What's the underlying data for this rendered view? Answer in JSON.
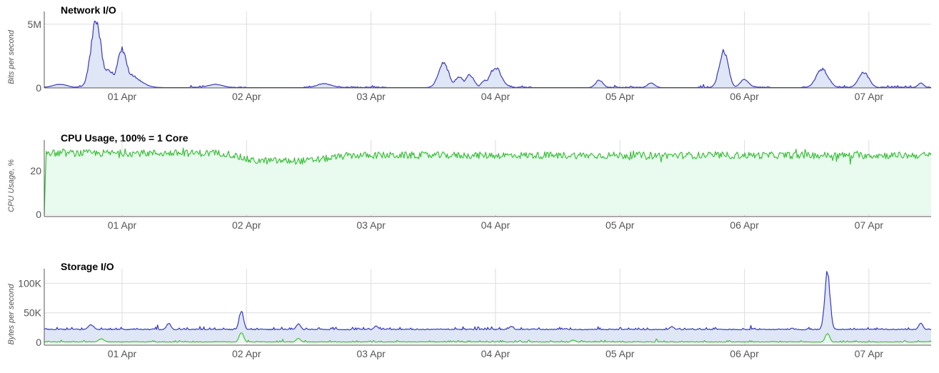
{
  "colors": {
    "blue_line": "#3838c0",
    "blue_fill": "#dfe6f5",
    "green_line": "#3cbf3c",
    "green_fill": "#e8fbee",
    "grid": "#dddddd",
    "text": "#555555"
  },
  "chart_data": [
    {
      "id": "network",
      "type": "area",
      "title": "Network I/O",
      "ylabel": "Bits per second",
      "x_ticks": [
        "01 Apr",
        "02 Apr",
        "03 Apr",
        "04 Apr",
        "05 Apr",
        "06 Apr",
        "07 Apr"
      ],
      "xlim": [
        "2024-03-31T09:00",
        "2024-04-07T12:00"
      ],
      "y_ticks": [
        {
          "v": 0,
          "label": "0"
        },
        {
          "v": 5000000,
          "label": "5M"
        }
      ],
      "ylim": [
        0,
        6000000
      ],
      "grid": true,
      "baseline": 20000,
      "noise": 60000,
      "series": [
        {
          "color_key": "blue",
          "peaks": [
            [
              "2024-03-31T19:00",
              5700000,
              0.7
            ],
            [
              "2024-03-31T21:00",
              1500000,
              1.5
            ],
            [
              "2024-04-01T00:00",
              3300000,
              0.7
            ],
            [
              "2024-04-01T01:00",
              1200000,
              1.5
            ],
            [
              "2024-03-31T12:00",
              300000,
              1
            ],
            [
              "2024-04-01T18:00",
              300000,
              1
            ],
            [
              "2024-04-02T15:00",
              350000,
              1
            ],
            [
              "2024-04-03T14:00",
              2100000,
              0.7
            ],
            [
              "2024-04-03T17:00",
              900000,
              0.7
            ],
            [
              "2024-04-03T19:00",
              1100000,
              0.6
            ],
            [
              "2024-04-03T22:00",
              650000,
              0.5
            ],
            [
              "2024-04-04T00:00",
              1700000,
              0.8
            ],
            [
              "2024-04-04T20:00",
              650000,
              0.5
            ],
            [
              "2024-04-05T06:00",
              400000,
              0.5
            ],
            [
              "2024-04-05T20:00",
              3200000,
              0.6
            ],
            [
              "2024-04-06T00:00",
              700000,
              0.6
            ],
            [
              "2024-04-06T15:00",
              1600000,
              0.8
            ],
            [
              "2024-04-06T23:00",
              1300000,
              0.7
            ],
            [
              "2024-04-07T10:00",
              400000,
              0.4
            ]
          ],
          "gaps": [
            [
              "2024-03-31T11:00",
              "2024-03-31T12:00"
            ],
            [
              "2024-04-01T02:00",
              "2024-04-01T13:00"
            ],
            [
              "2024-04-02T00:00",
              "2024-04-02T11:00"
            ],
            [
              "2024-04-03T03:00",
              "2024-04-03T12:00"
            ],
            [
              "2024-04-04T07:00",
              "2024-04-04T20:00"
            ],
            [
              "2024-04-05T05:00",
              "2024-04-05T15:00"
            ],
            [
              "2024-04-06T05:00",
              "2024-04-06T11:00"
            ]
          ]
        }
      ]
    },
    {
      "id": "cpu",
      "type": "area",
      "title": "CPU Usage, 100% = 1 Core",
      "ylabel": "CPU Usage, %",
      "x_ticks": [
        "01 Apr",
        "02 Apr",
        "03 Apr",
        "04 Apr",
        "05 Apr",
        "06 Apr",
        "07 Apr"
      ],
      "xlim": [
        "2024-03-31T09:00",
        "2024-04-07T12:00"
      ],
      "y_ticks": [
        {
          "v": 0,
          "label": "0"
        },
        {
          "v": 20,
          "label": "20"
        }
      ],
      "ylim": [
        -1,
        34
      ],
      "grid": true,
      "series": [
        {
          "color_key": "green",
          "levels": [
            [
              "2024-03-31T09:00",
              0
            ],
            [
              "2024-03-31T09:20",
              28
            ],
            [
              "2024-04-01T20:00",
              28
            ],
            [
              "2024-04-02T01:00",
              24.5
            ],
            [
              "2024-04-02T12:00",
              24.5
            ],
            [
              "2024-04-02T20:00",
              27
            ],
            [
              "2024-04-07T12:00",
              27
            ]
          ],
          "noise": 1.6
        }
      ]
    },
    {
      "id": "storage",
      "type": "area",
      "title": "Storage I/O",
      "ylabel": "Bytes per second",
      "x_ticks": [
        "01 Apr",
        "02 Apr",
        "03 Apr",
        "04 Apr",
        "05 Apr",
        "06 Apr",
        "07 Apr"
      ],
      "xlim": [
        "2024-03-31T09:00",
        "2024-04-07T12:00"
      ],
      "y_ticks": [
        {
          "v": 0,
          "label": "0"
        },
        {
          "v": 50000,
          "label": "50K"
        },
        {
          "v": 100000,
          "label": "100K"
        }
      ],
      "ylim": [
        -5000,
        125000
      ],
      "grid": true,
      "series": [
        {
          "color_key": "blue",
          "baseline": 21000,
          "noise": 1500,
          "peaks": [
            [
              "2024-03-31T18:00",
              30000,
              0.4
            ],
            [
              "2024-04-01T09:00",
              33000,
              0.3
            ],
            [
              "2024-04-01T23:00",
              57000,
              0.3
            ],
            [
              "2024-04-02T10:00",
              32000,
              0.3
            ],
            [
              "2024-04-03T01:00",
              28000,
              0.3
            ],
            [
              "2024-04-04T03:00",
              27000,
              0.3
            ],
            [
              "2024-04-05T10:00",
              27000,
              0.3
            ],
            [
              "2024-04-06T16:00",
              128000,
              0.35
            ],
            [
              "2024-04-07T10:00",
              33000,
              0.3
            ]
          ]
        },
        {
          "color_key": "green",
          "baseline": 0,
          "noise": 1000,
          "peaks": [
            [
              "2024-03-31T20:00",
              6000,
              0.4
            ],
            [
              "2024-04-01T23:00",
              18000,
              0.3
            ],
            [
              "2024-04-02T10:00",
              7000,
              0.3
            ],
            [
              "2024-04-04T15:00",
              4000,
              0.3
            ],
            [
              "2024-04-06T16:00",
              16000,
              0.3
            ]
          ]
        }
      ]
    }
  ]
}
